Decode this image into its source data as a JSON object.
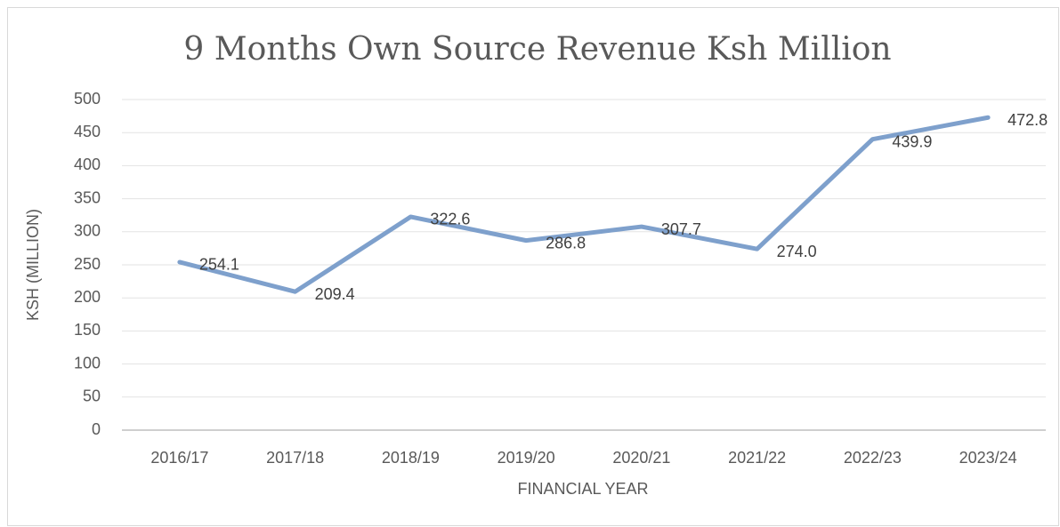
{
  "chart_data": {
    "type": "line",
    "title": "9 Months Own Source Revenue Ksh Million",
    "x_label": "FINANCIAL YEAR",
    "y_label": "KSH (MILLION)",
    "categories": [
      "2016/17",
      "2017/18",
      "2018/19",
      "2019/20",
      "2020/21",
      "2021/22",
      "2022/23",
      "2023/24"
    ],
    "series": [
      {
        "name": "Own Source Revenue",
        "color": "#7ea0cc",
        "values": [
          254.1,
          209.4,
          322.6,
          286.8,
          307.7,
          274.0,
          439.9,
          472.8
        ],
        "value_labels": [
          "254.1",
          "209.4",
          "322.6",
          "286.8",
          "307.7",
          "274.0",
          "439.9",
          "472.8"
        ]
      }
    ],
    "ylim": [
      0,
      500
    ],
    "yticks": [
      0,
      50,
      100,
      150,
      200,
      250,
      300,
      350,
      400,
      450,
      500
    ],
    "grid": true,
    "legend": false
  }
}
